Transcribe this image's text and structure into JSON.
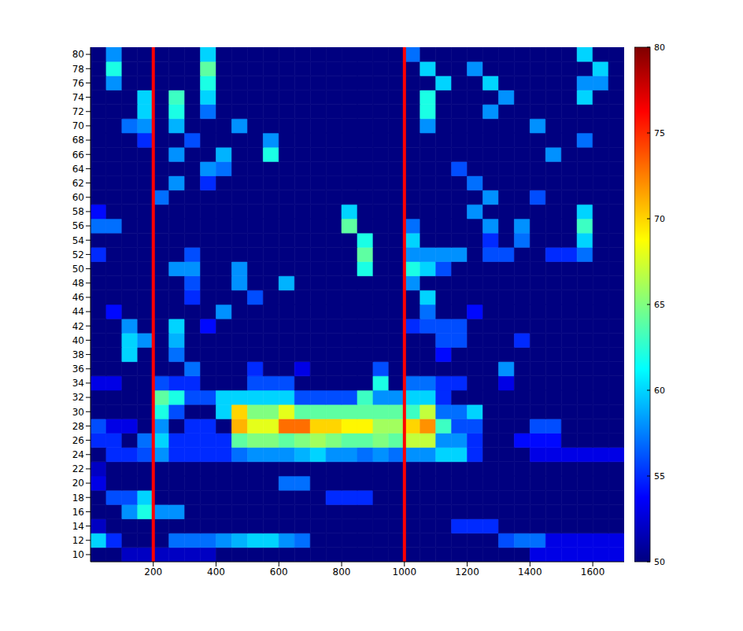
{
  "chart_data": {
    "type": "heatmap",
    "x": [
      25,
      75,
      125,
      175,
      225,
      275,
      325,
      375,
      425,
      475,
      525,
      575,
      625,
      675,
      725,
      775,
      825,
      875,
      925,
      975,
      1025,
      1075,
      1125,
      1175,
      1225,
      1275,
      1325,
      1375,
      1425,
      1475,
      1525,
      1575,
      1625,
      1675
    ],
    "y": [
      10,
      12,
      14,
      16,
      18,
      20,
      22,
      24,
      26,
      28,
      30,
      32,
      34,
      36,
      38,
      40,
      42,
      44,
      46,
      48,
      50,
      52,
      54,
      56,
      58,
      60,
      62,
      64,
      66,
      68,
      70,
      72,
      74,
      76,
      78,
      80
    ],
    "z": [
      [
        50,
        50,
        52,
        52,
        52,
        52,
        52,
        52,
        50,
        50,
        50,
        50,
        50,
        50,
        50,
        50,
        50,
        50,
        50,
        50,
        50,
        50,
        50,
        50,
        50,
        50,
        50,
        50,
        53,
        53,
        53,
        53,
        53,
        53
      ],
      [
        60,
        55,
        50,
        50,
        50,
        57,
        57,
        57,
        58,
        59,
        60,
        60,
        58,
        57,
        50,
        50,
        50,
        50,
        50,
        50,
        50,
        50,
        50,
        50,
        50,
        50,
        56,
        57,
        57,
        53,
        53,
        53,
        53,
        53
      ],
      [
        52,
        50,
        50,
        50,
        50,
        50,
        50,
        50,
        50,
        50,
        50,
        50,
        50,
        50,
        50,
        50,
        50,
        50,
        50,
        50,
        50,
        50,
        50,
        55,
        55,
        55,
        50,
        50,
        50,
        50,
        50,
        50,
        50,
        50
      ],
      [
        50,
        50,
        58,
        62,
        58,
        58,
        50,
        50,
        50,
        50,
        50,
        50,
        50,
        50,
        50,
        50,
        50,
        50,
        50,
        50,
        50,
        50,
        50,
        50,
        50,
        50,
        50,
        50,
        50,
        50,
        50,
        50,
        50,
        50
      ],
      [
        50,
        56,
        56,
        60,
        50,
        50,
        50,
        50,
        50,
        50,
        50,
        50,
        50,
        50,
        50,
        55,
        55,
        55,
        50,
        50,
        50,
        50,
        50,
        50,
        50,
        50,
        50,
        50,
        50,
        50,
        50,
        50,
        50,
        50
      ],
      [
        53,
        50,
        50,
        50,
        50,
        50,
        50,
        50,
        50,
        50,
        50,
        50,
        57,
        57,
        50,
        50,
        50,
        50,
        50,
        50,
        50,
        50,
        50,
        50,
        50,
        50,
        50,
        50,
        50,
        50,
        50,
        50,
        50,
        50
      ],
      [
        52,
        50,
        50,
        50,
        50,
        50,
        50,
        50,
        50,
        50,
        50,
        50,
        50,
        50,
        50,
        50,
        50,
        50,
        50,
        50,
        50,
        50,
        50,
        50,
        50,
        50,
        50,
        50,
        50,
        50,
        50,
        50,
        50,
        50
      ],
      [
        50,
        55,
        55,
        56,
        58,
        55,
        55,
        55,
        55,
        57,
        58,
        58,
        58,
        59,
        60,
        58,
        58,
        57,
        58,
        57,
        58,
        58,
        60,
        60,
        55,
        50,
        50,
        50,
        53,
        53,
        53,
        53,
        53,
        53
      ],
      [
        55,
        55,
        50,
        57,
        60,
        55,
        55,
        55,
        55,
        64,
        65,
        65,
        64,
        65,
        66,
        65,
        64,
        64,
        65,
        64,
        67,
        67,
        58,
        58,
        55,
        50,
        50,
        54,
        54,
        54,
        50,
        50,
        50,
        50
      ],
      [
        56,
        53,
        53,
        50,
        58,
        50,
        55,
        55,
        50,
        71,
        68,
        68,
        73,
        73,
        70,
        70,
        69,
        69,
        66,
        66,
        70,
        72,
        63,
        56,
        56,
        50,
        50,
        50,
        56,
        56,
        50,
        50,
        50,
        50
      ],
      [
        50,
        50,
        50,
        50,
        62,
        56,
        50,
        50,
        60,
        70,
        65,
        65,
        68,
        64,
        64,
        64,
        64,
        64,
        64,
        64,
        63,
        67,
        57,
        57,
        60,
        50,
        50,
        50,
        50,
        50,
        50,
        50,
        50,
        50
      ],
      [
        50,
        50,
        50,
        50,
        64,
        62,
        56,
        56,
        60,
        60,
        60,
        60,
        60,
        56,
        56,
        56,
        56,
        63,
        58,
        58,
        60,
        60,
        55,
        50,
        50,
        50,
        50,
        50,
        50,
        50,
        50,
        50,
        50,
        50
      ],
      [
        53,
        53,
        50,
        50,
        56,
        55,
        55,
        50,
        50,
        50,
        56,
        56,
        56,
        50,
        50,
        50,
        50,
        50,
        62,
        50,
        57,
        57,
        55,
        55,
        50,
        50,
        53,
        50,
        50,
        50,
        50,
        50,
        50,
        50
      ],
      [
        50,
        50,
        50,
        50,
        50,
        50,
        57,
        50,
        50,
        50,
        55,
        50,
        50,
        53,
        50,
        50,
        50,
        50,
        56,
        50,
        50,
        50,
        50,
        50,
        50,
        50,
        58,
        50,
        50,
        50,
        50,
        50,
        50,
        50
      ],
      [
        50,
        50,
        60,
        50,
        50,
        57,
        50,
        50,
        50,
        50,
        50,
        50,
        50,
        50,
        50,
        50,
        50,
        50,
        50,
        50,
        50,
        50,
        54,
        50,
        50,
        50,
        50,
        50,
        50,
        50,
        50,
        50,
        50,
        50
      ],
      [
        50,
        50,
        60,
        58,
        50,
        59,
        50,
        50,
        50,
        50,
        50,
        50,
        50,
        50,
        50,
        50,
        50,
        50,
        50,
        50,
        50,
        50,
        56,
        56,
        50,
        50,
        50,
        55,
        50,
        50,
        50,
        50,
        50,
        50
      ],
      [
        50,
        50,
        58,
        50,
        50,
        60,
        50,
        54,
        50,
        50,
        50,
        50,
        50,
        50,
        50,
        50,
        50,
        50,
        50,
        50,
        55,
        56,
        56,
        56,
        50,
        50,
        50,
        50,
        50,
        50,
        50,
        50,
        50,
        50
      ],
      [
        50,
        54,
        50,
        50,
        50,
        50,
        50,
        50,
        58,
        50,
        50,
        50,
        50,
        50,
        50,
        50,
        50,
        50,
        50,
        50,
        50,
        57,
        50,
        50,
        54,
        50,
        50,
        50,
        50,
        50,
        50,
        50,
        50,
        50
      ],
      [
        50,
        50,
        50,
        50,
        50,
        50,
        55,
        50,
        50,
        50,
        56,
        50,
        50,
        50,
        50,
        50,
        50,
        50,
        50,
        50,
        50,
        60,
        50,
        50,
        50,
        50,
        50,
        50,
        50,
        50,
        50,
        50,
        50,
        50
      ],
      [
        50,
        50,
        50,
        50,
        50,
        50,
        56,
        50,
        50,
        58,
        50,
        50,
        59,
        50,
        50,
        50,
        50,
        50,
        50,
        50,
        58,
        50,
        50,
        50,
        50,
        50,
        50,
        50,
        50,
        50,
        50,
        50,
        50,
        50
      ],
      [
        50,
        50,
        50,
        50,
        50,
        58,
        58,
        50,
        50,
        58,
        50,
        50,
        50,
        50,
        50,
        50,
        50,
        62,
        50,
        50,
        62,
        60,
        56,
        50,
        50,
        50,
        50,
        50,
        50,
        50,
        50,
        50,
        50,
        50
      ],
      [
        55,
        50,
        50,
        50,
        50,
        50,
        56,
        50,
        50,
        50,
        50,
        50,
        50,
        50,
        50,
        50,
        50,
        64,
        50,
        50,
        58,
        58,
        58,
        58,
        50,
        56,
        56,
        50,
        50,
        55,
        55,
        57,
        50,
        50
      ],
      [
        50,
        50,
        50,
        50,
        50,
        50,
        50,
        50,
        50,
        50,
        50,
        50,
        50,
        50,
        50,
        50,
        50,
        62,
        50,
        50,
        60,
        50,
        50,
        50,
        50,
        55,
        50,
        57,
        50,
        50,
        50,
        60,
        50,
        50
      ],
      [
        57,
        57,
        50,
        50,
        50,
        50,
        50,
        50,
        50,
        50,
        50,
        50,
        50,
        50,
        50,
        50,
        64,
        50,
        50,
        50,
        57,
        50,
        50,
        50,
        50,
        58,
        50,
        58,
        50,
        50,
        50,
        63,
        50,
        50
      ],
      [
        54,
        50,
        50,
        50,
        50,
        50,
        50,
        50,
        50,
        50,
        50,
        50,
        50,
        50,
        50,
        50,
        60,
        50,
        50,
        50,
        50,
        50,
        50,
        50,
        58,
        50,
        50,
        50,
        50,
        50,
        50,
        60,
        50,
        50
      ],
      [
        50,
        50,
        50,
        50,
        57,
        50,
        50,
        50,
        50,
        50,
        50,
        50,
        50,
        50,
        50,
        50,
        50,
        50,
        50,
        50,
        50,
        50,
        50,
        50,
        50,
        58,
        50,
        50,
        56,
        50,
        50,
        50,
        50,
        50
      ],
      [
        50,
        50,
        50,
        50,
        50,
        58,
        50,
        55,
        50,
        50,
        50,
        50,
        50,
        50,
        50,
        50,
        50,
        50,
        50,
        50,
        50,
        50,
        50,
        50,
        57,
        50,
        50,
        50,
        50,
        50,
        50,
        50,
        50,
        50
      ],
      [
        50,
        50,
        50,
        50,
        50,
        50,
        50,
        58,
        57,
        50,
        50,
        50,
        50,
        50,
        50,
        50,
        50,
        50,
        50,
        50,
        50,
        50,
        50,
        56,
        50,
        50,
        50,
        50,
        50,
        50,
        50,
        50,
        50,
        50
      ],
      [
        50,
        50,
        50,
        50,
        50,
        58,
        50,
        50,
        59,
        50,
        50,
        62,
        50,
        50,
        50,
        50,
        50,
        50,
        50,
        50,
        50,
        50,
        50,
        50,
        50,
        50,
        50,
        50,
        50,
        58,
        50,
        50,
        50,
        50
      ],
      [
        50,
        50,
        50,
        55,
        50,
        50,
        56,
        50,
        50,
        50,
        50,
        58,
        50,
        50,
        50,
        50,
        50,
        50,
        50,
        50,
        50,
        50,
        50,
        50,
        50,
        50,
        50,
        50,
        50,
        50,
        50,
        57,
        50,
        50
      ],
      [
        50,
        50,
        57,
        58,
        50,
        59,
        50,
        50,
        50,
        58,
        50,
        50,
        50,
        50,
        50,
        50,
        50,
        50,
        50,
        50,
        50,
        58,
        50,
        50,
        50,
        50,
        50,
        50,
        58,
        50,
        50,
        50,
        50,
        50
      ],
      [
        50,
        50,
        50,
        60,
        50,
        62,
        50,
        57,
        50,
        50,
        50,
        50,
        50,
        50,
        50,
        50,
        50,
        50,
        50,
        50,
        50,
        62,
        50,
        50,
        50,
        58,
        50,
        50,
        50,
        50,
        50,
        50,
        50,
        50
      ],
      [
        50,
        50,
        50,
        60,
        50,
        63,
        50,
        60,
        50,
        50,
        50,
        50,
        50,
        50,
        50,
        50,
        50,
        50,
        50,
        50,
        50,
        62,
        50,
        50,
        50,
        50,
        58,
        50,
        50,
        50,
        50,
        60,
        50,
        50
      ],
      [
        50,
        58,
        50,
        50,
        50,
        50,
        50,
        62,
        50,
        50,
        50,
        50,
        50,
        50,
        50,
        50,
        50,
        50,
        50,
        50,
        50,
        50,
        60,
        50,
        50,
        60,
        50,
        50,
        50,
        50,
        50,
        58,
        58,
        50
      ],
      [
        50,
        62,
        50,
        50,
        50,
        50,
        50,
        64,
        50,
        50,
        50,
        50,
        50,
        50,
        50,
        50,
        50,
        50,
        50,
        50,
        50,
        60,
        50,
        50,
        58,
        50,
        50,
        50,
        50,
        50,
        50,
        50,
        60,
        50
      ],
      [
        50,
        58,
        50,
        50,
        50,
        50,
        50,
        60,
        50,
        50,
        50,
        50,
        50,
        50,
        50,
        50,
        50,
        50,
        50,
        50,
        57,
        50,
        50,
        50,
        50,
        50,
        50,
        50,
        50,
        50,
        50,
        60,
        50,
        50
      ]
    ],
    "xlim": [
      0,
      1700
    ],
    "xticks": [
      200,
      400,
      600,
      800,
      1000,
      1200,
      1400,
      1600
    ],
    "ylim": [
      9,
      81
    ],
    "yticks": [
      10,
      12,
      14,
      16,
      18,
      20,
      22,
      24,
      26,
      28,
      30,
      32,
      34,
      36,
      38,
      40,
      42,
      44,
      46,
      48,
      50,
      52,
      54,
      56,
      58,
      60,
      62,
      64,
      66,
      68,
      70,
      72,
      74,
      76,
      78,
      80
    ],
    "color_range": [
      50,
      80
    ],
    "color_ticks": [
      50,
      55,
      60,
      65,
      70,
      75,
      80
    ],
    "reference_lines": [
      {
        "x": 200,
        "color": "#ff0000"
      },
      {
        "x": 1000,
        "color": "#ff0000"
      }
    ]
  }
}
